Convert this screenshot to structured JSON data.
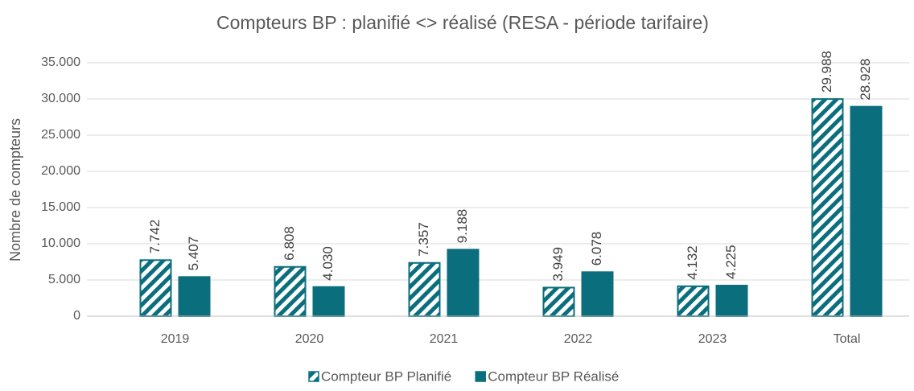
{
  "chart_data": {
    "type": "bar",
    "title": "Compteurs BP : planifié <> réalisé (RESA - période tarifaire)",
    "y_label": "Nombre de compteurs",
    "categories": [
      "2019",
      "2020",
      "2021",
      "2022",
      "2023",
      "Total"
    ],
    "series": [
      {
        "name": "Compteur BP Planifié",
        "color": "#0b6e7d",
        "pattern": "hatch",
        "values": [
          7742,
          6808,
          7357,
          3949,
          4132,
          29988
        ],
        "value_labels": [
          "7.742",
          "6.808",
          "7.357",
          "3.949",
          "4.132",
          "29.988"
        ]
      },
      {
        "name": "Compteur BP Réalisé",
        "color": "#0b6e7d",
        "pattern": "solid",
        "values": [
          5407,
          4030,
          9188,
          6078,
          4225,
          28928
        ],
        "value_labels": [
          "5.407",
          "4.030",
          "9.188",
          "6.078",
          "4.225",
          "28.928"
        ]
      }
    ],
    "ylim": [
      0,
      35000
    ],
    "yticks": [
      0,
      {
        "value": 5000,
        "label": "5.000"
      },
      {
        "value": 10000,
        "label": "10.000"
      },
      {
        "value": 15000,
        "label": "15.000"
      },
      {
        "value": 20000,
        "label": "20.000"
      },
      {
        "value": 25000,
        "label": "25.000"
      },
      {
        "value": 30000,
        "label": "30.000"
      },
      {
        "value": 35000,
        "label": "35.000"
      }
    ],
    "grid": true,
    "legend": "bottom"
  }
}
